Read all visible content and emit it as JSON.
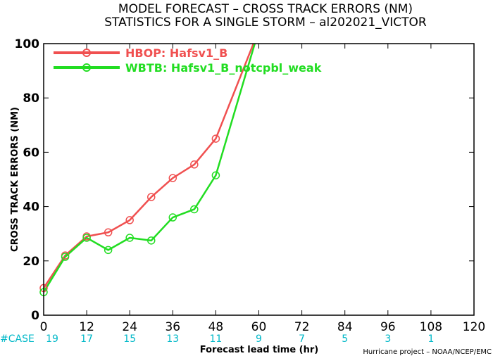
{
  "chart_data": {
    "type": "line",
    "title": "MODEL FORECAST – CROSS TRACK ERRORS (NM)",
    "subtitle": "STATISTICS FOR A SINGLE STORM – al202021_VICTOR",
    "xlabel": "Forecast lead time (hr)",
    "ylabel": "CROSS TRACK ERRORS (NM)",
    "xlim": [
      0,
      120
    ],
    "ylim": [
      0,
      100
    ],
    "xticks": [
      0,
      12,
      24,
      36,
      48,
      60,
      72,
      84,
      96,
      108,
      120
    ],
    "yticks": [
      0,
      20,
      40,
      60,
      80,
      100
    ],
    "case_label": "#CASE",
    "cases": [
      {
        "x": 0,
        "n": "19"
      },
      {
        "x": 12,
        "n": "17"
      },
      {
        "x": 24,
        "n": "15"
      },
      {
        "x": 36,
        "n": "13"
      },
      {
        "x": 48,
        "n": "11"
      },
      {
        "x": 60,
        "n": "9"
      },
      {
        "x": 72,
        "n": "7"
      },
      {
        "x": 84,
        "n": "5"
      },
      {
        "x": 96,
        "n": "3"
      },
      {
        "x": 108,
        "n": "1"
      }
    ],
    "credit": "Hurricane project – NOAA/NCEP/EMC",
    "legend_position": "top-left",
    "series": [
      {
        "name": "HBOP: Hafsv1_B",
        "color": "#f05050",
        "x": [
          0,
          6,
          12,
          18,
          24,
          30,
          36,
          42,
          48,
          60
        ],
        "y": [
          10,
          22,
          29,
          30.5,
          35,
          43.5,
          50.5,
          55.5,
          65,
          105
        ]
      },
      {
        "name": "WBTB: Hafsv1_B_notcpbl_weak",
        "color": "#22dd22",
        "x": [
          0,
          6,
          12,
          18,
          24,
          30,
          36,
          42,
          48,
          60
        ],
        "y": [
          8.5,
          21.5,
          28.5,
          24,
          28.5,
          27.5,
          36,
          39,
          51.5,
          105
        ]
      }
    ]
  }
}
